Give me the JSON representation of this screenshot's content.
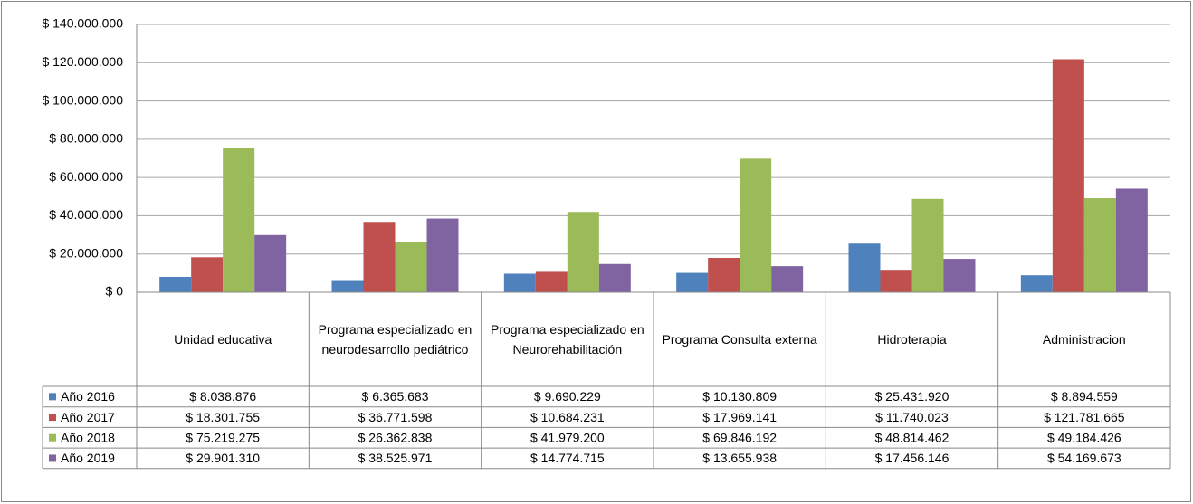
{
  "chart_data": {
    "type": "bar",
    "categories": [
      "Unidad educativa",
      "Programa especializado en neurodesarrollo pediátrico",
      "Programa especializado en Neurorehabilitación",
      "Programa Consulta externa",
      "Hidroterapia",
      "Administracion"
    ],
    "series": [
      {
        "name": "Año 2016",
        "color": "#4f81bd",
        "values": [
          8038876,
          6365683,
          9690229,
          10130809,
          25431920,
          8894559
        ],
        "value_labels": [
          "$ 8.038.876",
          "$ 6.365.683",
          "$ 9.690.229",
          "$ 10.130.809",
          "$ 25.431.920",
          "$ 8.894.559"
        ]
      },
      {
        "name": "Año 2017",
        "color": "#c0504d",
        "values": [
          18301755,
          36771598,
          10684231,
          17969141,
          11740023,
          121781665
        ],
        "value_labels": [
          "$ 18.301.755",
          "$ 36.771.598",
          "$ 10.684.231",
          "$ 17.969.141",
          "$ 11.740.023",
          "$ 121.781.665"
        ]
      },
      {
        "name": "Año 2018",
        "color": "#9bbb59",
        "values": [
          75219275,
          26362838,
          41979200,
          69846192,
          48814462,
          49184426
        ],
        "value_labels": [
          "$ 75.219.275",
          "$ 26.362.838",
          "$ 41.979.200",
          "$ 69.846.192",
          "$ 48.814.462",
          "$ 49.184.426"
        ]
      },
      {
        "name": "Año 2019",
        "color": "#8064a2",
        "values": [
          29901310,
          38525971,
          14774715,
          13655938,
          17456146,
          54169673
        ],
        "value_labels": [
          "$ 29.901.310",
          "$ 38.525.971",
          "$ 14.774.715",
          "$ 13.655.938",
          "$ 17.456.146",
          "$ 54.169.673"
        ]
      }
    ],
    "ylim": [
      0,
      140000000
    ],
    "yticks": [
      {
        "value": 0,
        "label": "$ 0"
      },
      {
        "value": 20000000,
        "label": "$ 20.000.000"
      },
      {
        "value": 40000000,
        "label": "$ 40.000.000"
      },
      {
        "value": 60000000,
        "label": "$ 60.000.000"
      },
      {
        "value": 80000000,
        "label": "$ 80.000.000"
      },
      {
        "value": 100000000,
        "label": "$ 100.000.000"
      },
      {
        "value": 120000000,
        "label": "$ 120.000.000"
      },
      {
        "value": 140000000,
        "label": "$ 140.000.000"
      }
    ],
    "grid": true
  }
}
